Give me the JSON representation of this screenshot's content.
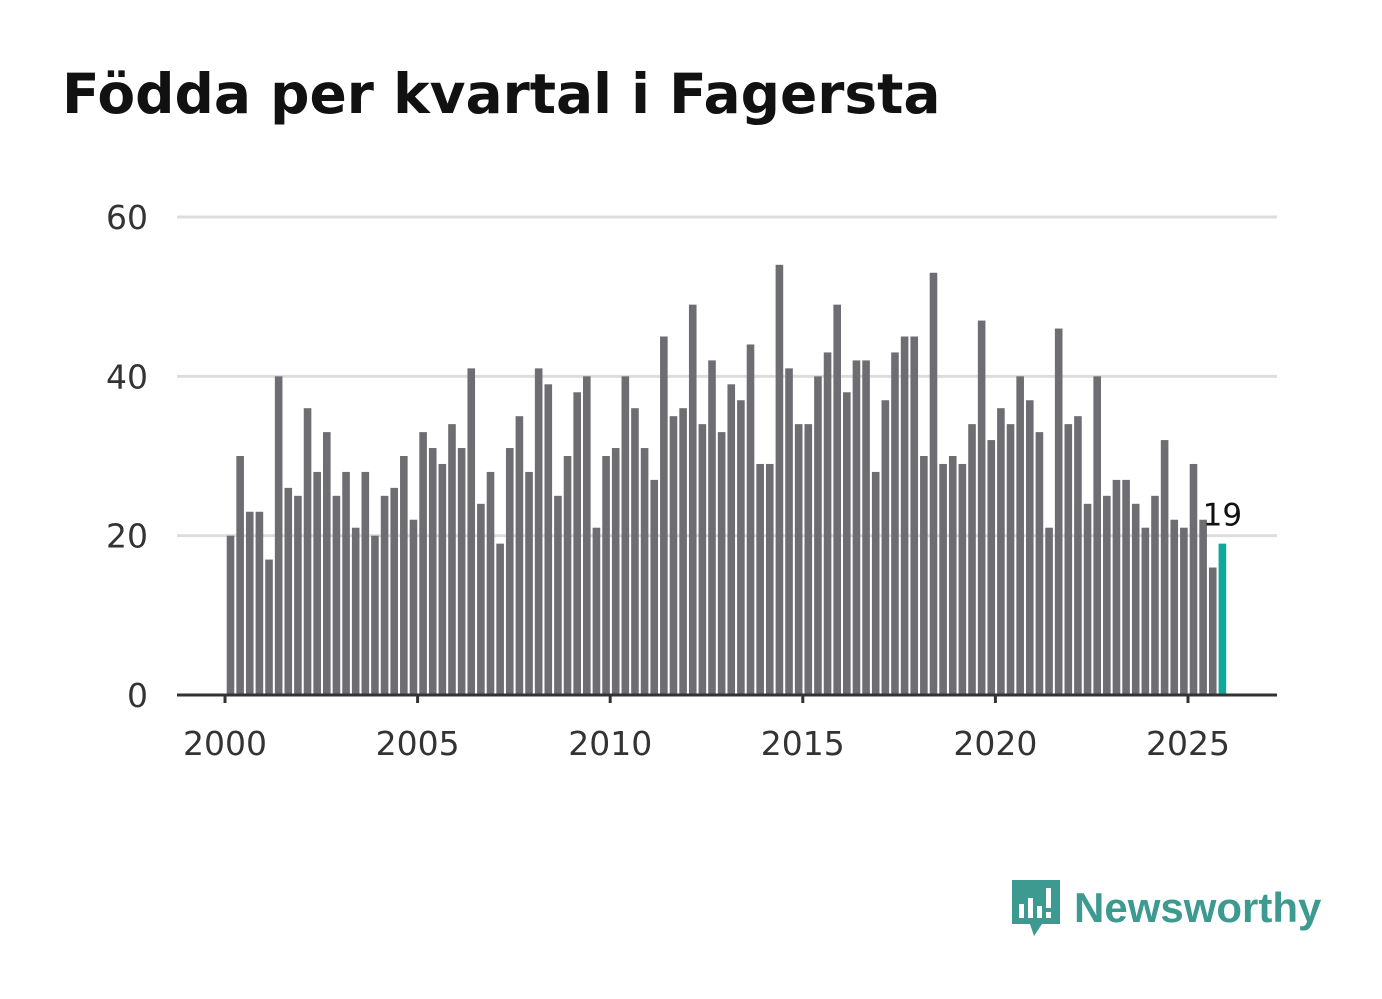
{
  "chart_data": {
    "type": "bar",
    "title": "Födda per kvartal i Fagersta",
    "xlabel": "",
    "ylabel": "",
    "ylim": [
      0,
      60
    ],
    "yticks": [
      0,
      20,
      40,
      60
    ],
    "xticks": [
      2000,
      2005,
      2010,
      2015,
      2020,
      2025
    ],
    "grid": true,
    "start_year": 2000,
    "values": [
      20,
      30,
      23,
      23,
      17,
      40,
      26,
      25,
      36,
      28,
      33,
      25,
      28,
      21,
      28,
      20,
      25,
      26,
      30,
      22,
      33,
      31,
      29,
      34,
      31,
      41,
      24,
      28,
      19,
      31,
      35,
      28,
      41,
      39,
      25,
      30,
      38,
      40,
      21,
      30,
      31,
      40,
      36,
      31,
      27,
      45,
      35,
      36,
      49,
      34,
      42,
      33,
      39,
      37,
      44,
      29,
      29,
      54,
      41,
      34,
      34,
      40,
      43,
      49,
      38,
      42,
      42,
      28,
      37,
      43,
      45,
      45,
      30,
      53,
      29,
      30,
      29,
      34,
      47,
      32,
      36,
      34,
      40,
      37,
      33,
      21,
      46,
      34,
      35,
      24,
      40,
      25,
      27,
      27,
      24,
      21,
      25,
      32,
      22,
      21,
      29,
      22,
      16,
      19
    ],
    "highlight_last": true,
    "last_label": "19",
    "colors": {
      "bar": "#6e6d72",
      "highlight": "#10a89a",
      "grid": "#dddddd",
      "axis": "#333333"
    }
  },
  "logo": {
    "text": "Newsworthy",
    "color": "#3d9a90"
  }
}
